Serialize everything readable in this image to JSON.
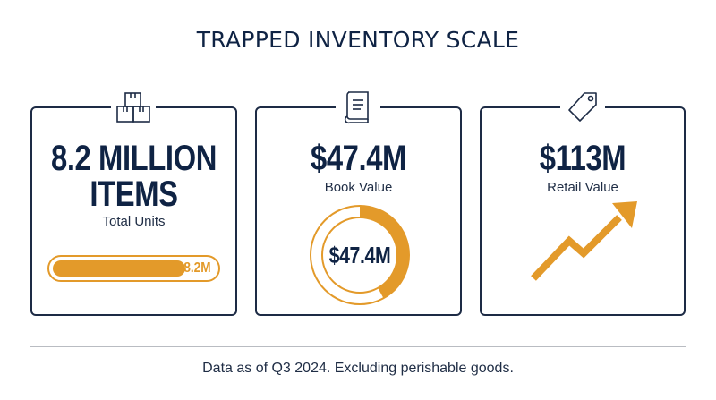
{
  "title": "TRAPPED INVENTORY SCALE",
  "cards": [
    {
      "icon": "boxes-icon",
      "value_line1": "8.2 MILLION",
      "value_line2": "ITEMS",
      "label": "Total Units",
      "bar": {
        "label": "8.2M",
        "fill_fraction": 0.82
      }
    },
    {
      "icon": "ledger-book-icon",
      "value": "$47.4M",
      "label": "Book Value",
      "donut": {
        "label": "$47.4M",
        "fraction": 0.42
      }
    },
    {
      "icon": "price-tag-icon",
      "value": "$113M",
      "label": "Retail Value",
      "trend_icon": "trend-up-arrow-icon"
    }
  ],
  "colors": {
    "navy": "#0f2344",
    "accent": "#e39a2a",
    "divider": "#b9bcc2"
  },
  "footnote": "Data as of Q3 2024. Excluding perishable goods."
}
